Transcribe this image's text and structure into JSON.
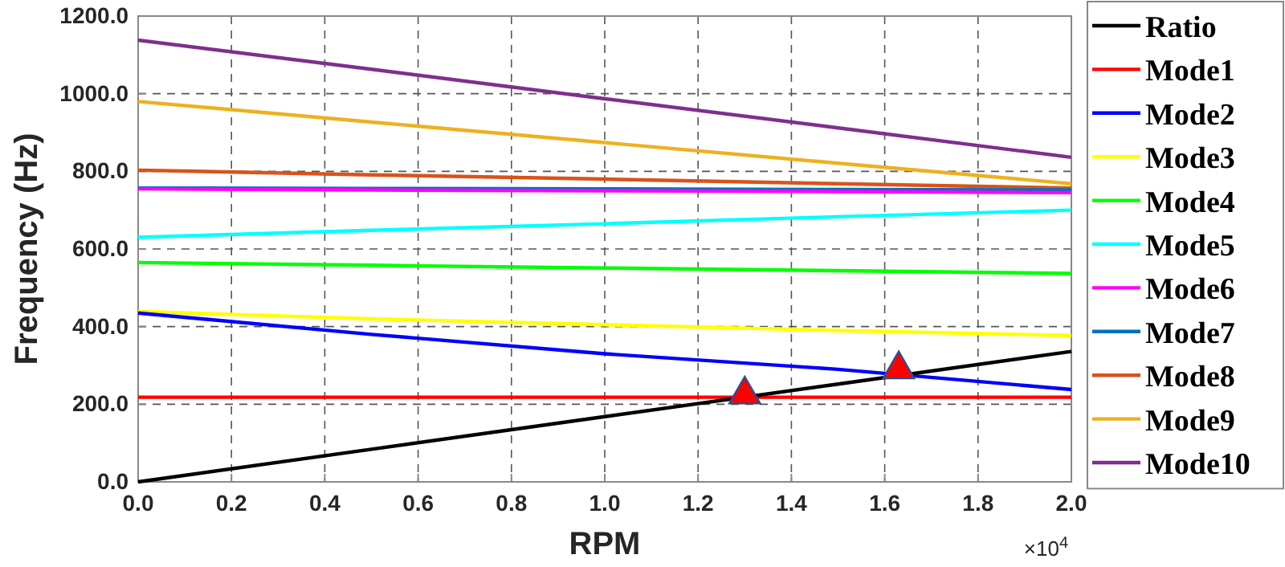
{
  "chart_data": {
    "type": "line",
    "xlabel": "RPM",
    "ylabel": "Frequency (Hz)",
    "annotations": [
      "×10$^{4}$"
    ],
    "xlim": [
      0,
      2
    ],
    "xticks": [
      {
        "value": 0,
        "label": "0.0"
      },
      {
        "value": 0.2,
        "label": "0.2"
      },
      {
        "value": 0.4,
        "label": "0.4"
      },
      {
        "value": 0.6,
        "label": "0.6"
      },
      {
        "value": 0.8,
        "label": "0.8"
      },
      {
        "value": 1,
        "label": "1.0"
      },
      {
        "value": 1.2,
        "label": "1.2"
      },
      {
        "value": 1.4,
        "label": "1.4"
      },
      {
        "value": 1.6,
        "label": "1.6"
      },
      {
        "value": 1.8,
        "label": "1.8"
      },
      {
        "value": 2,
        "label": "2.0"
      }
    ],
    "ylim": [
      0,
      1200
    ],
    "yticks": [
      {
        "value": 0,
        "label": "0.0"
      },
      {
        "value": 200,
        "label": "200.0"
      },
      {
        "value": 400,
        "label": "400.0"
      },
      {
        "value": 600,
        "label": "600.0"
      },
      {
        "value": 800,
        "label": "800.0"
      },
      {
        "value": 1000,
        "label": "1000.0"
      },
      {
        "value": 1200,
        "label": "1200.0"
      }
    ],
    "x": [
      0,
      0.5,
      1,
      1.5,
      2
    ],
    "series": [
      {
        "name": "Ratio",
        "color": "#000000",
        "values": [
          0,
          84,
          168,
          252,
          336
        ]
      },
      {
        "name": "Mode1",
        "color": "#ff0000",
        "values": [
          218,
          218,
          218,
          218,
          218
        ]
      },
      {
        "name": "Mode2",
        "color": "#0000ff",
        "values": [
          435,
          380,
          330,
          290,
          238
        ]
      },
      {
        "name": "Mode3",
        "color": "#ffff00",
        "values": [
          439,
          420,
          405,
          390,
          377
        ]
      },
      {
        "name": "Mode4",
        "color": "#00ff00",
        "values": [
          565,
          558,
          551,
          544,
          537
        ]
      },
      {
        "name": "Mode5",
        "color": "#00ffff",
        "values": [
          630,
          648,
          665,
          683,
          700
        ]
      },
      {
        "name": "Mode6",
        "color": "#ff00ff",
        "values": [
          755,
          752,
          750,
          748,
          745
        ]
      },
      {
        "name": "Mode7",
        "color": "#0072bd",
        "values": [
          757,
          756,
          755,
          753,
          752
        ]
      },
      {
        "name": "Mode8",
        "color": "#d95319",
        "values": [
          803,
          791,
          780,
          768,
          757
        ]
      },
      {
        "name": "Mode9",
        "color": "#edb120",
        "values": [
          980,
          927,
          874,
          821,
          768
        ]
      },
      {
        "name": "Mode10",
        "color": "#7e2f8e",
        "values": [
          1138,
          1063,
          987,
          912,
          836
        ]
      },
      {
        "type": "scatter",
        "marker": "triangle",
        "color": "#ff0000",
        "x": [
          1.3,
          1.63
        ],
        "values": [
          225,
          290
        ]
      }
    ],
    "grid": true,
    "legend": "right",
    "line_style": "solid"
  }
}
